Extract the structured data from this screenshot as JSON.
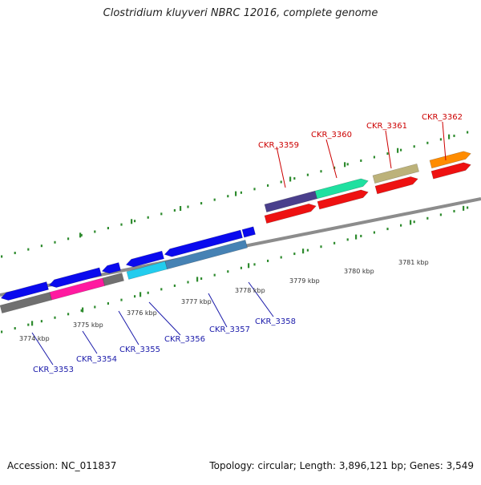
{
  "title": "Clostridium kluyveri NBRC 12016, complete genome",
  "footer": {
    "accession": "Accession: NC_011837",
    "summary": "Topology: circular; Length: 3,896,121 bp; Genes: 3,549"
  },
  "colors": {
    "backbone": "#8c8c8c",
    "ticks": "#2e8b2e",
    "label_forward": "#cc0000",
    "label_reverse": "#1a1aaa",
    "scale_text": "#333333"
  },
  "scale_labels": [
    "3774 kbp",
    "3775 kbp",
    "3776 kbp",
    "3777 kbp",
    "3778 kbp",
    "3779 kbp",
    "3780 kbp",
    "3781 kbp"
  ],
  "gene_labels_forward": [
    "CKR_3359",
    "CKR_3360",
    "CKR_3361",
    "CKR_3362"
  ],
  "gene_labels_reverse": [
    "CKR_3353",
    "CKR_3354",
    "CKR_3355",
    "CKR_3356",
    "CKR_3357",
    "CKR_3358"
  ]
}
